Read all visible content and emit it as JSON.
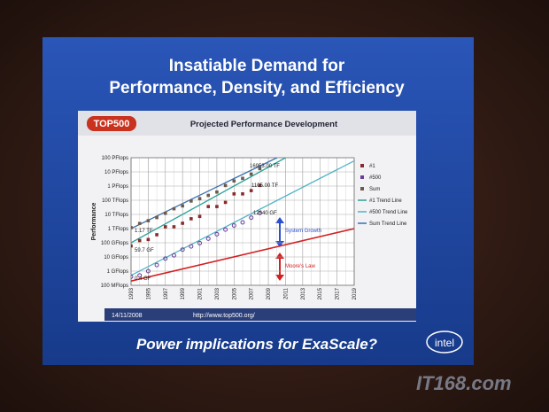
{
  "slide": {
    "title_line1": "Insatiable Demand for",
    "title_line2": "Performance, Density, and Efficiency",
    "question": "Power implications for ExaScale?",
    "logo": "intel"
  },
  "watermark": "IT168.com",
  "chart_data": {
    "type": "line",
    "title": "Projected Performance Development",
    "header_logo": "TOP500",
    "date": "14/11/2008",
    "url": "http://www.top500.org/",
    "y_label": "Performance",
    "log_scale": true,
    "grid": true,
    "xlim": [
      1993,
      2019
    ],
    "xticks": [
      1993,
      1995,
      1997,
      1999,
      2001,
      2003,
      2005,
      2007,
      2009,
      2011,
      2013,
      2015,
      2017,
      2019
    ],
    "ylim": [
      0.1,
      100000000
    ],
    "yticks": [
      {
        "value": 0.1,
        "label": "100 MFlops"
      },
      {
        "value": 1,
        "label": "1 GFlops"
      },
      {
        "value": 10,
        "label": "10 GFlops"
      },
      {
        "value": 100,
        "label": "100 GFlops"
      },
      {
        "value": 1000,
        "label": "1 TFlops"
      },
      {
        "value": 10000,
        "label": "10 TFlops"
      },
      {
        "value": 100000,
        "label": "100 TFlops"
      },
      {
        "value": 1000000,
        "label": "1 PFlops"
      },
      {
        "value": 10000000,
        "label": "10 PFlops"
      },
      {
        "value": 100000000,
        "label": "100 PFlops"
      }
    ],
    "x": [
      1993,
      1994,
      1995,
      1996,
      1997,
      1998,
      1999,
      2000,
      2001,
      2002,
      2003,
      2004,
      2005,
      2006,
      2007,
      2008
    ],
    "series": [
      {
        "name": "#1",
        "color": "#8b2a2a",
        "values": [
          59.7,
          143,
          170,
          368,
          1338,
          1338,
          2379,
          4938,
          7226,
          35860,
          35860,
          70720,
          280600,
          280600,
          478200,
          1105000
        ]
      },
      {
        "name": "#500",
        "color": "#6a3d9a",
        "values": [
          0.4,
          0.5,
          1.0,
          2.7,
          7.7,
          13,
          33,
          55,
          94,
          196,
          403,
          851,
          1646,
          2737,
          5900,
          12640
        ]
      },
      {
        "name": "Sum",
        "color": "#6e5a48",
        "values": [
          1170,
          2300,
          3600,
          6000,
          12000,
          25000,
          40000,
          88000,
          130000,
          220000,
          380000,
          1100000,
          2300000,
          3500000,
          6900000,
          16953000
        ]
      }
    ],
    "trend_lines": [
      {
        "name": "#1 Trend Line",
        "color": "#2aa198",
        "x": [
          1993,
          2011
        ],
        "values": [
          100,
          100000000
        ]
      },
      {
        "name": "#500 Trend Line",
        "color": "#4fb3c8",
        "x": [
          1993,
          2019
        ],
        "values": [
          0.5,
          60000000
        ]
      },
      {
        "name": "Sum Trend Line",
        "color": "#3a6fb0",
        "x": [
          1993,
          2010
        ],
        "values": [
          1000,
          100000000
        ]
      }
    ],
    "moores_law": {
      "color": "#d42020",
      "x": [
        1993,
        2019
      ],
      "values": [
        0.2,
        1000
      ]
    },
    "annotations": [
      "16953.00 TF",
      "1105.00 TF",
      "12640 GF",
      "1.17 TF",
      "59.7 GF",
      "0.4 GF",
      "System Growth",
      "Moore's Law"
    ]
  }
}
